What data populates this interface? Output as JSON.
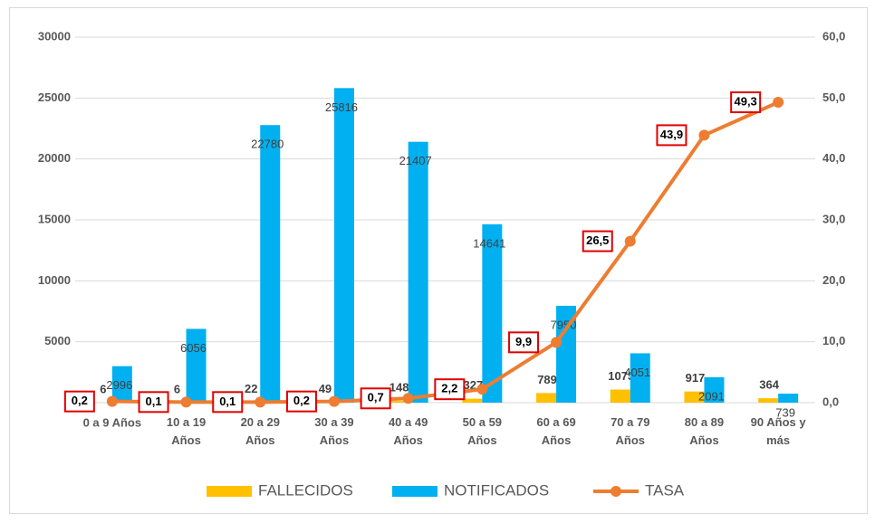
{
  "chart_data": {
    "type": "combo",
    "categories": [
      "0 a 9 Años",
      "10 a 19 Años",
      "20 a 29 Años",
      "30 a 39 Años",
      "40 a 49 Años",
      "50 a 59 Años",
      "60 a 69 Años",
      "70 a 79 Años",
      "80 a 89 Años",
      "90 Años y más"
    ],
    "series": [
      {
        "name": "FALLECIDOS",
        "type": "bar",
        "color": "#ffc000",
        "values": [
          6,
          6,
          22,
          49,
          148,
          327,
          789,
          1073,
          917,
          364
        ]
      },
      {
        "name": "NOTIFICADOS",
        "type": "bar",
        "color": "#00b0f0",
        "values": [
          2996,
          6056,
          22780,
          25816,
          21407,
          14641,
          7950,
          4051,
          2091,
          739
        ]
      },
      {
        "name": "TASA",
        "type": "line",
        "axis": "y2",
        "color": "#ed7d31",
        "values": [
          0.2,
          0.1,
          0.1,
          0.2,
          0.7,
          2.2,
          9.9,
          26.5,
          43.9,
          49.3
        ],
        "value_labels": [
          "0,2",
          "0,1",
          "0,1",
          "0,2",
          "0,7",
          "2,2",
          "9,9",
          "26,5",
          "43,9",
          "49,3"
        ]
      }
    ],
    "ylim": [
      0,
      30000
    ],
    "yticks": [
      0,
      5000,
      10000,
      15000,
      20000,
      25000,
      30000
    ],
    "y2lim": [
      0,
      60
    ],
    "y2ticks": [
      {
        "value": 0,
        "label": "0,0"
      },
      {
        "value": 10,
        "label": "10,0"
      },
      {
        "value": 20,
        "label": "20,0"
      },
      {
        "value": 30,
        "label": "30,0"
      },
      {
        "value": 40,
        "label": "40,0"
      },
      {
        "value": 50,
        "label": "50,0"
      },
      {
        "value": 60,
        "label": "60,0"
      }
    ],
    "grid": true,
    "legend": "bottom"
  }
}
